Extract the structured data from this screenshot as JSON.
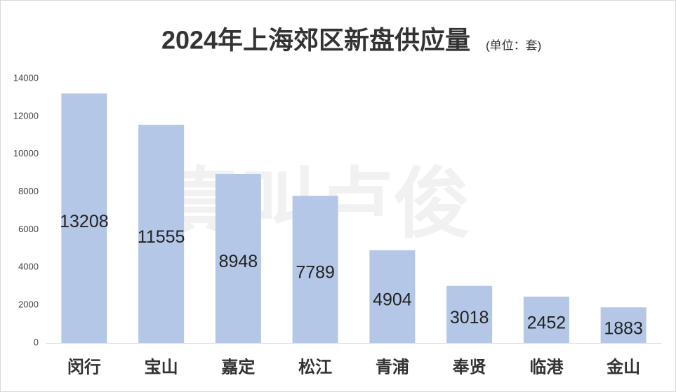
{
  "chart_data": {
    "type": "bar",
    "title": "2024年上海郊区新盘供应量",
    "subtitle": "(单位：套)",
    "watermark": "真叫卢俊",
    "categories": [
      "闵行",
      "宝山",
      "嘉定",
      "松江",
      "青浦",
      "奉贤",
      "临港",
      "金山"
    ],
    "values": [
      13208,
      11555,
      8948,
      7789,
      4904,
      3018,
      2452,
      1883
    ],
    "color": "#b4c7e7",
    "ylim": [
      0,
      14000
    ],
    "yticks": [
      0,
      2000,
      4000,
      6000,
      8000,
      10000,
      12000,
      14000
    ],
    "grid": false
  }
}
